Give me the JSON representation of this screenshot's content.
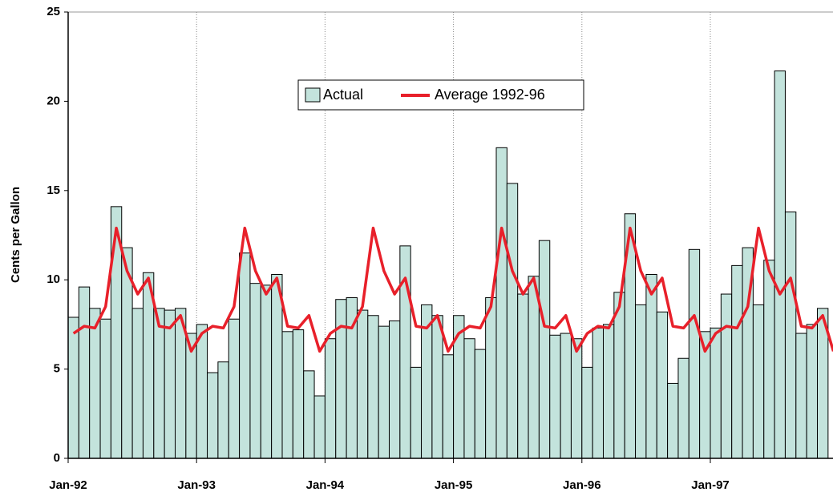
{
  "chart_data": {
    "type": "bar",
    "y_label": "Cents per Gallon",
    "categories": [
      "Jan-92",
      null,
      null,
      null,
      null,
      null,
      null,
      null,
      null,
      null,
      null,
      null,
      "Jan-93",
      null,
      null,
      null,
      null,
      null,
      null,
      null,
      null,
      null,
      null,
      null,
      "Jan-94",
      null,
      null,
      null,
      null,
      null,
      null,
      null,
      null,
      null,
      null,
      null,
      "Jan-95",
      null,
      null,
      null,
      null,
      null,
      null,
      null,
      null,
      null,
      null,
      null,
      "Jan-96",
      null,
      null,
      null,
      null,
      null,
      null,
      null,
      null,
      null,
      null,
      null,
      "Jan-97",
      null,
      null,
      null,
      null,
      null,
      null,
      null,
      null,
      null,
      null,
      null
    ],
    "series": [
      {
        "name": "Actual",
        "type": "bar",
        "color": "#c3e3dc",
        "values": [
          7.9,
          9.6,
          8.4,
          7.8,
          14.1,
          11.8,
          8.4,
          10.4,
          8.4,
          8.3,
          8.4,
          7.0,
          7.5,
          4.8,
          5.4,
          7.8,
          11.5,
          9.8,
          9.7,
          10.3,
          7.1,
          7.2,
          4.9,
          3.5,
          6.7,
          8.9,
          9.0,
          8.3,
          8.0,
          7.4,
          7.7,
          11.9,
          5.1,
          8.6,
          8.0,
          5.8,
          8.0,
          6.7,
          6.1,
          9.0,
          17.4,
          15.4,
          9.2,
          10.2,
          12.2,
          6.9,
          7.0,
          6.7,
          5.1,
          7.3,
          7.5,
          9.3,
          13.7,
          8.6,
          10.3,
          8.2,
          4.2,
          5.6,
          11.7,
          7.1,
          7.3,
          9.2,
          10.8,
          11.8,
          8.6,
          11.1,
          21.7,
          13.8,
          7.0,
          7.5,
          8.4,
          null
        ]
      },
      {
        "name": "Average 1992-96",
        "type": "line",
        "color": "#e8202a",
        "values": [
          7.0,
          7.4,
          7.3,
          8.5,
          12.9,
          10.5,
          9.2,
          10.1,
          7.4,
          7.3,
          8.0,
          6.0,
          7.0,
          7.4,
          7.3,
          8.5,
          12.9,
          10.5,
          9.2,
          10.1,
          7.4,
          7.3,
          8.0,
          6.0,
          7.0,
          7.4,
          7.3,
          8.5,
          12.9,
          10.5,
          9.2,
          10.1,
          7.4,
          7.3,
          8.0,
          6.0,
          7.0,
          7.4,
          7.3,
          8.5,
          12.9,
          10.5,
          9.2,
          10.1,
          7.4,
          7.3,
          8.0,
          6.0,
          7.0,
          7.4,
          7.3,
          8.5,
          12.9,
          10.5,
          9.2,
          10.1,
          7.4,
          7.3,
          8.0,
          6.0,
          7.0,
          7.4,
          7.3,
          8.5,
          12.9,
          10.5,
          9.2,
          10.1,
          7.4,
          7.3,
          8.0,
          6.0
        ]
      }
    ],
    "ylim": [
      0,
      25
    ],
    "yticks": [
      0,
      5,
      10,
      15,
      20,
      25
    ],
    "grid": "x-dotted"
  }
}
